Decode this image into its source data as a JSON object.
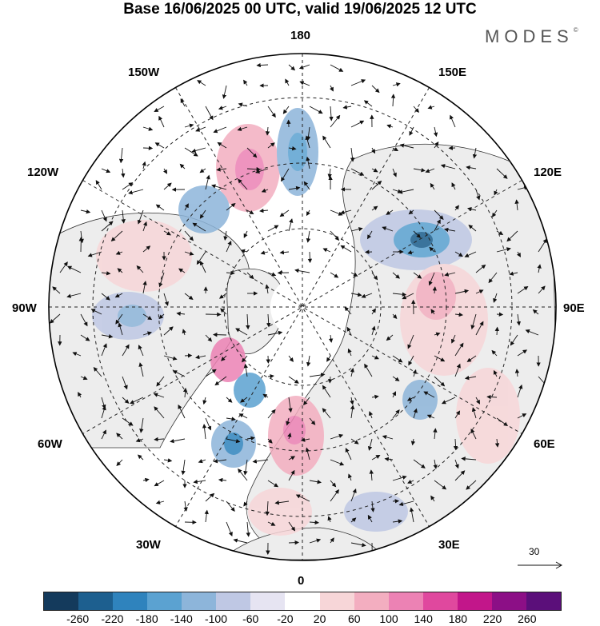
{
  "title": "Base 16/06/2025 00 UTC, valid 19/06/2025 12 UTC",
  "brand": "MODES",
  "brand_mark": "©",
  "longitude_labels": {
    "lon_180": "180",
    "lon_150e": "150E",
    "lon_120e": "120E",
    "lon_90e": "90E",
    "lon_60e": "60E",
    "lon_30e": "30E",
    "lon_0": "0",
    "lon_30w": "30W",
    "lon_60w": "60W",
    "lon_90w": "90W",
    "lon_120w": "120W",
    "lon_150w": "150W"
  },
  "reference_vector": {
    "label": "30"
  },
  "colorbar": {
    "colors": [
      "#143a5c",
      "#1d5f8f",
      "#2f83bd",
      "#5ba2d1",
      "#8db5da",
      "#bfc8e4",
      "#e6e4f2",
      "#ffffff",
      "#f7d6d8",
      "#f3aec0",
      "#ec82b4",
      "#e0489e",
      "#c2168a",
      "#8c0f86",
      "#5b0f7a"
    ],
    "ticks": [
      "-260",
      "-220",
      "-180",
      "-140",
      "-100",
      "-60",
      "-20",
      "20",
      "60",
      "100",
      "140",
      "180",
      "220",
      "260"
    ]
  },
  "colors": {
    "land": "#ededed",
    "ocean": "#ffffff",
    "positive": "#f3aec0",
    "negative": "#8db5da"
  }
}
